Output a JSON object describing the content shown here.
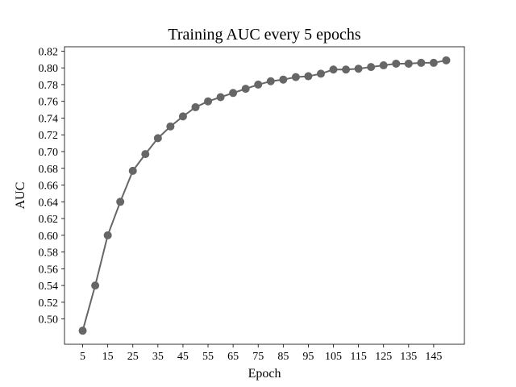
{
  "chart_data": {
    "type": "line",
    "title": "Training AUC every 5 epochs",
    "xlabel": "Epoch",
    "ylabel": "AUC",
    "x": [
      5,
      10,
      15,
      20,
      25,
      30,
      35,
      40,
      45,
      50,
      55,
      60,
      65,
      70,
      75,
      80,
      85,
      90,
      95,
      100,
      105,
      110,
      115,
      120,
      125,
      130,
      135,
      140,
      145,
      150
    ],
    "series": [
      {
        "values": [
          0.486,
          0.54,
          0.6,
          0.64,
          0.677,
          0.697,
          0.716,
          0.73,
          0.742,
          0.753,
          0.76,
          0.765,
          0.77,
          0.775,
          0.78,
          0.784,
          0.786,
          0.789,
          0.79,
          0.793,
          0.798,
          0.798,
          0.799,
          0.801,
          0.803,
          0.805,
          0.805,
          0.806,
          0.806,
          0.809
        ],
        "color": "#666666"
      }
    ],
    "xticks": [
      "5",
      "15",
      "25",
      "35",
      "45",
      "55",
      "65",
      "75",
      "85",
      "95",
      "105",
      "115",
      "125",
      "135",
      "145"
    ],
    "yticks": [
      "0.50",
      "0.52",
      "0.54",
      "0.56",
      "0.58",
      "0.60",
      "0.62",
      "0.64",
      "0.66",
      "0.68",
      "0.70",
      "0.72",
      "0.74",
      "0.76",
      "0.78",
      "0.80",
      "0.82"
    ],
    "xlim": [
      -2.25,
      157.25
    ],
    "ylim": [
      0.4698,
      0.8252
    ],
    "grid": false,
    "legend": "none"
  }
}
